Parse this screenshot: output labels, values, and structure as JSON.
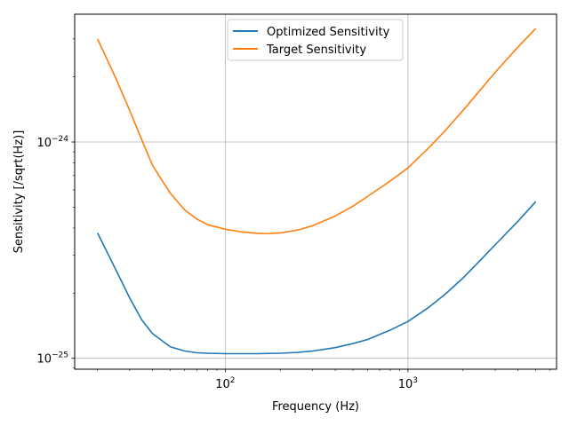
{
  "chart_data": {
    "type": "line",
    "title": "",
    "xlabel": "Frequency (Hz)",
    "ylabel": "Sensitivity [/sqrt(Hz)]",
    "xscale": "log",
    "yscale": "log",
    "xlim": [
      15,
      6500
    ],
    "ylim": [
      8.9e-26,
      3.9e-24
    ],
    "grid": true,
    "legend_position": "top-center",
    "x_ticks": [
      {
        "value": 100,
        "base": "10",
        "exp": "2"
      },
      {
        "value": 1000,
        "base": "10",
        "exp": "3"
      }
    ],
    "y_ticks": [
      {
        "value": 1e-25,
        "base": "10",
        "exp": "−25"
      },
      {
        "value": 1e-24,
        "base": "10",
        "exp": "−24"
      }
    ],
    "series": [
      {
        "name": "Optimized Sensitivity",
        "color": "#1f77b4",
        "x": [
          20,
          25,
          30,
          35,
          40,
          50,
          60,
          70,
          80,
          100,
          120,
          150,
          200,
          250,
          300,
          400,
          500,
          600,
          800,
          1000,
          1300,
          1600,
          2000,
          2500,
          3000,
          4000,
          5000
        ],
        "y": [
          3.8e-25,
          2.6e-25,
          1.9e-25,
          1.5e-25,
          1.3e-25,
          1.13e-25,
          1.08e-25,
          1.06e-25,
          1.055e-25,
          1.05e-25,
          1.05e-25,
          1.05e-25,
          1.055e-25,
          1.065e-25,
          1.08e-25,
          1.12e-25,
          1.17e-25,
          1.22e-25,
          1.35e-25,
          1.48e-25,
          1.72e-25,
          1.98e-25,
          2.35e-25,
          2.85e-25,
          3.35e-25,
          4.3e-25,
          5.3e-25
        ]
      },
      {
        "name": "Target Sensitivity",
        "color": "#ff7f0e",
        "x": [
          20,
          25,
          30,
          35,
          40,
          50,
          60,
          70,
          80,
          100,
          120,
          150,
          170,
          200,
          250,
          300,
          400,
          500,
          600,
          800,
          1000,
          1300,
          1600,
          2000,
          2500,
          3000,
          4000,
          5000
        ],
        "y": [
          3e-24,
          2e-24,
          1.4e-24,
          1.02e-24,
          7.8e-25,
          5.8e-25,
          4.85e-25,
          4.4e-25,
          4.15e-25,
          3.95e-25,
          3.85e-25,
          3.78e-25,
          3.77e-25,
          3.8e-25,
          3.92e-25,
          4.1e-25,
          4.55e-25,
          5.05e-25,
          5.6e-25,
          6.6e-25,
          7.6e-25,
          9.4e-25,
          1.13e-24,
          1.4e-24,
          1.75e-24,
          2.1e-24,
          2.75e-24,
          3.35e-24
        ]
      }
    ]
  }
}
